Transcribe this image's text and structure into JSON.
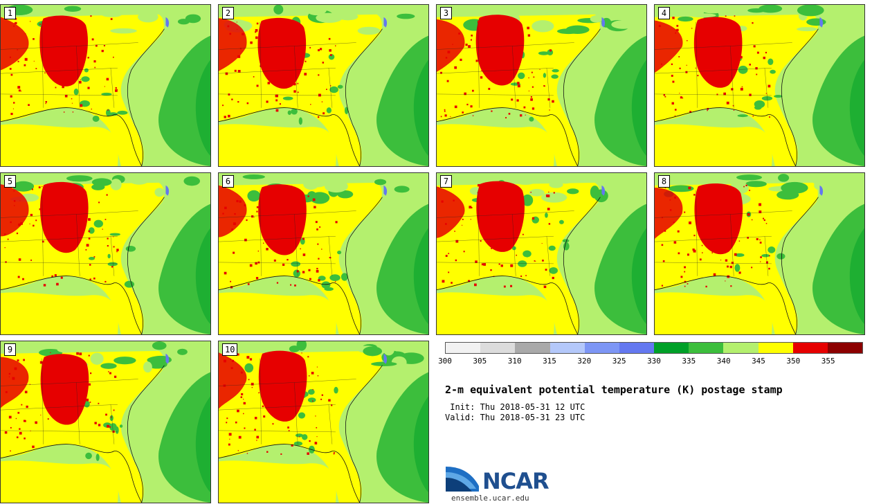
{
  "panels": [
    {
      "label": "1",
      "variant": 0
    },
    {
      "label": "2",
      "variant": 1
    },
    {
      "label": "3",
      "variant": 2
    },
    {
      "label": "4",
      "variant": 3
    },
    {
      "label": "5",
      "variant": 4
    },
    {
      "label": "6",
      "variant": 5
    },
    {
      "label": "7",
      "variant": 6
    },
    {
      "label": "8",
      "variant": 7
    },
    {
      "label": "9",
      "variant": 8
    },
    {
      "label": "10",
      "variant": 9
    }
  ],
  "colorbar": {
    "colors": [
      "#f2f2f2",
      "#dcdcdc",
      "#a9a9a9",
      "#b4c8fa",
      "#7d96f5",
      "#6478f0",
      "#00a028",
      "#3cbe3c",
      "#b4f06e",
      "#ffff00",
      "#e60000",
      "#8c0000"
    ],
    "ticks": [
      "300",
      "305",
      "310",
      "315",
      "320",
      "325",
      "330",
      "335",
      "340",
      "345",
      "350",
      "355"
    ]
  },
  "map_colors": {
    "land": "#ffff00",
    "sea_light": "#b4f06e",
    "sea_mid": "#3cbe3c",
    "sea_dark": "#00a028",
    "hot": "#e60000",
    "lake": "#6478f0"
  },
  "title": "2-m equivalent potential temperature (K) postage stamp",
  "init": " Init: Thu 2018-05-31 12 UTC",
  "valid": "Valid: Thu 2018-05-31 23 UTC",
  "logo": {
    "text": "NCAR",
    "url": "ensemble.ucar.edu"
  }
}
